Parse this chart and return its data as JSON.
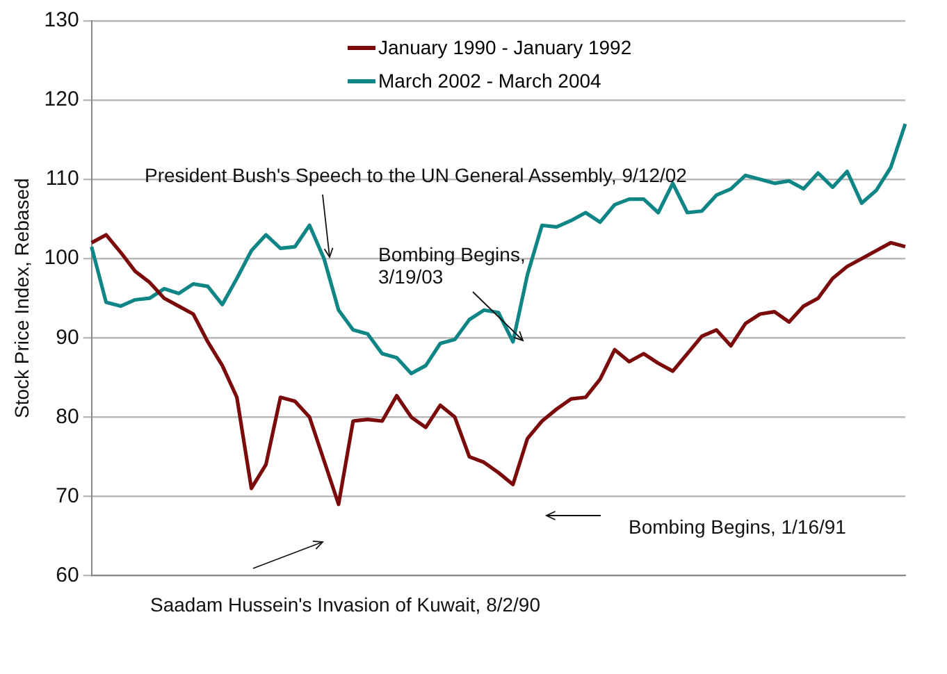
{
  "chart_data": {
    "type": "line",
    "ylabel": "Stock Price Index, Rebased",
    "categories": [
      null,
      null,
      null,
      null,
      null,
      null,
      null,
      null,
      null,
      null,
      null,
      null,
      null,
      null,
      null,
      null,
      null,
      null,
      null,
      null,
      null,
      null,
      null,
      null,
      null,
      null,
      null,
      null,
      null,
      null,
      null,
      null,
      null,
      null,
      null,
      null,
      null,
      null,
      null,
      null,
      null,
      null,
      null,
      null,
      null,
      null,
      null,
      null,
      null,
      null,
      null,
      null,
      null,
      null,
      null,
      null,
      null
    ],
    "series": [
      {
        "name": "January 1990 - January 1992",
        "color": "#7b0a0a",
        "values": [
          102,
          103,
          100.8,
          98.4,
          97,
          95,
          94,
          93,
          89.5,
          86.5,
          82.5,
          71,
          74,
          82.5,
          82,
          80,
          74.5,
          69,
          79.5,
          79.7,
          79.5,
          82.7,
          80,
          78.7,
          81.5,
          80,
          75,
          74.3,
          73,
          71.5,
          77.3,
          79.5,
          81,
          82.3,
          82.5,
          84.8,
          88.5,
          87,
          88,
          86.8,
          85.8,
          88,
          90.2,
          91,
          89,
          91.8,
          93,
          93.3,
          92,
          94,
          95,
          97.5,
          99,
          100,
          101,
          102,
          101.5
        ]
      },
      {
        "name": "March 2002 - March 2004",
        "color": "#0f8585",
        "values": [
          101.5,
          94.5,
          94,
          94.8,
          95,
          96.2,
          95.6,
          96.8,
          96.5,
          94.2,
          97.5,
          101,
          103,
          101.3,
          101.5,
          104.2,
          100,
          93.5,
          91,
          90.5,
          88,
          87.5,
          85.5,
          86.5,
          89.3,
          89.8,
          92.3,
          93.5,
          93.2,
          89.5,
          98,
          104.2,
          104,
          104.8,
          105.8,
          104.6,
          106.8,
          107.5,
          107.5,
          105.8,
          109.5,
          105.8,
          106,
          108,
          108.8,
          110.5,
          110,
          109.5,
          109.8,
          108.8,
          110.8,
          109,
          111,
          107,
          108.6,
          111.5,
          117
        ]
      }
    ],
    "ylim": [
      60,
      130
    ],
    "yticks": [
      60,
      70,
      80,
      90,
      100,
      110,
      120,
      130
    ],
    "grid": "y",
    "legend": "top",
    "marker": "none",
    "line_style": "solid",
    "annotations": [
      "President Bush's Speech to the UN General Assembly, 9/12/02",
      "Bombing Begins, 3/19/03",
      "Saadam Hussein's Invasion of Kuwait, 8/2/90",
      "Bombing Begins, 1/16/91"
    ]
  }
}
